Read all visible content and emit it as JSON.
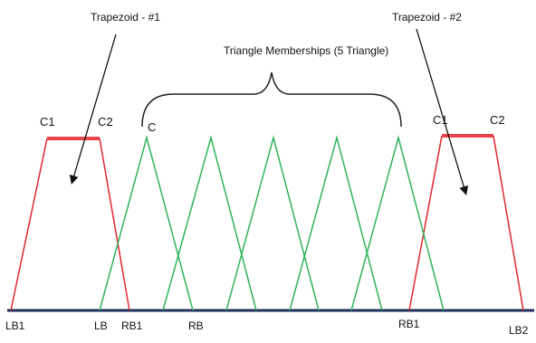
{
  "labels": {
    "trapezoid1_title": "Trapezoid - #1",
    "trapezoid2_title": "Trapezoid - #2",
    "triangle_title": "Triangle Memberships (5 Triangle)",
    "t1_c1": "C1",
    "t1_c2": "C2",
    "t2_c1": "C1",
    "t2_c2": "C2",
    "tri_c": "C",
    "lb1": "LB1",
    "lb": "LB",
    "rb1_left": "RB1",
    "rb": "RB",
    "rb1_right": "RB1",
    "lb2": "LB2"
  },
  "colors": {
    "trapezoid": "#e0282e",
    "trapezoid_top": "#e8434a",
    "triangle": "#2fb35a",
    "baseline": "#1c2f5a",
    "annotation": "#111111"
  }
}
